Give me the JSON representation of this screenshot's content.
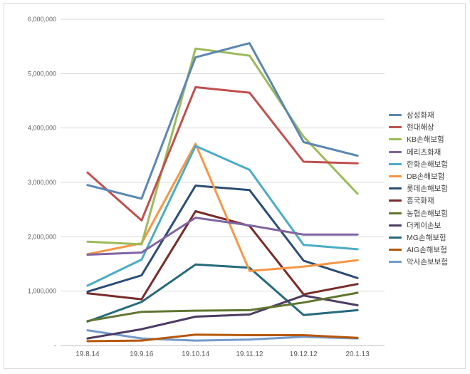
{
  "chart_data": {
    "type": "line",
    "title": "",
    "xlabel": "",
    "ylabel": "",
    "categories": [
      "19.8.14",
      "19.9.16",
      "19.10.14",
      "19.11.12",
      "19.12.12",
      "20.1.13"
    ],
    "y_ticks": [
      "-",
      "1,000,000",
      "2,000,000",
      "3,000,000",
      "4,000,000",
      "5,000,000",
      "6,000,000"
    ],
    "ylim": [
      0,
      6000000
    ],
    "grid": true,
    "legend_position": "right",
    "series": [
      {
        "name": "삼성화재",
        "color": "#5b86b3",
        "values": [
          2950000,
          2700000,
          5300000,
          5560000,
          3740000,
          3490000
        ]
      },
      {
        "name": "현대해상",
        "color": "#c0504d",
        "values": [
          3180000,
          2300000,
          4750000,
          4650000,
          3380000,
          3350000
        ]
      },
      {
        "name": "KB손해보험",
        "color": "#9bbb59",
        "values": [
          1910000,
          1860000,
          5460000,
          5330000,
          3840000,
          2790000
        ]
      },
      {
        "name": "메리츠화재",
        "color": "#8064a2",
        "values": [
          1670000,
          1710000,
          2350000,
          2210000,
          2040000,
          2040000
        ]
      },
      {
        "name": "한화손해보험",
        "color": "#4bacc6",
        "values": [
          1100000,
          1580000,
          3670000,
          3230000,
          1850000,
          1770000
        ]
      },
      {
        "name": "DB손해보험",
        "color": "#f79646",
        "values": [
          1680000,
          1880000,
          3710000,
          1370000,
          1450000,
          1570000
        ]
      },
      {
        "name": "롯데손해보험",
        "color": "#2c4d75",
        "values": [
          990000,
          1290000,
          2940000,
          2860000,
          1560000,
          1240000
        ]
      },
      {
        "name": "흥국화재",
        "color": "#772c2a",
        "values": [
          960000,
          850000,
          2470000,
          2200000,
          940000,
          1130000
        ]
      },
      {
        "name": "농협손해보험",
        "color": "#5f7530",
        "values": [
          450000,
          620000,
          640000,
          650000,
          790000,
          970000
        ]
      },
      {
        "name": "더케이손보",
        "color": "#4d3b62",
        "values": [
          130000,
          300000,
          530000,
          570000,
          920000,
          740000
        ]
      },
      {
        "name": "MG손해보험",
        "color": "#276a7c",
        "values": [
          440000,
          800000,
          1490000,
          1430000,
          560000,
          650000
        ]
      },
      {
        "name": "AIG손해보험",
        "color": "#b65708",
        "values": [
          80000,
          90000,
          200000,
          190000,
          190000,
          140000
        ]
      },
      {
        "name": "악사손보보험",
        "color": "#729aca",
        "values": [
          280000,
          130000,
          90000,
          110000,
          160000,
          130000
        ]
      }
    ]
  }
}
